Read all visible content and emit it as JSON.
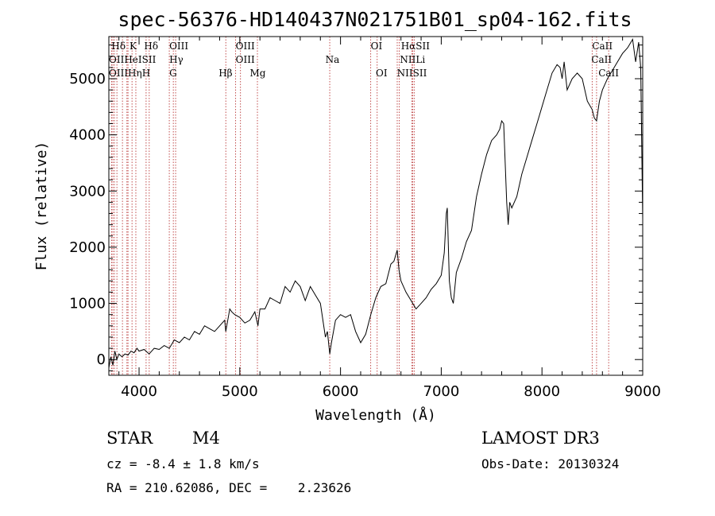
{
  "chart_data": {
    "type": "line",
    "title": "spec-56376-HD140437N021751B01_sp04-162.fits",
    "xlabel": "Wavelength (Å)",
    "ylabel": "Flux (relative)",
    "xlim": [
      3700,
      9000
    ],
    "ylim": [
      -280,
      5750
    ],
    "x_ticks": [
      4000,
      5000,
      6000,
      7000,
      8000,
      9000
    ],
    "y_ticks": [
      0,
      1000,
      2000,
      3000,
      4000,
      5000
    ],
    "x_tick_labels": [
      "4000",
      "5000",
      "6000",
      "7000",
      "8000",
      "9000"
    ],
    "y_tick_labels": [
      "0",
      "1000",
      "2000",
      "3000",
      "4000",
      "5000"
    ],
    "series": [
      {
        "name": "spectrum",
        "x": [
          3700,
          3720,
          3740,
          3760,
          3780,
          3800,
          3830,
          3860,
          3890,
          3920,
          3950,
          3980,
          4000,
          4050,
          4100,
          4150,
          4200,
          4250,
          4300,
          4350,
          4400,
          4450,
          4500,
          4550,
          4600,
          4650,
          4700,
          4750,
          4800,
          4850,
          4861,
          4900,
          4920,
          4950,
          5000,
          5050,
          5100,
          5150,
          5180,
          5200,
          5250,
          5300,
          5350,
          5400,
          5450,
          5500,
          5550,
          5600,
          5650,
          5700,
          5750,
          5800,
          5850,
          5870,
          5893,
          5910,
          5950,
          6000,
          6050,
          6100,
          6150,
          6200,
          6250,
          6300,
          6350,
          6400,
          6450,
          6500,
          6530,
          6563,
          6580,
          6600,
          6650,
          6700,
          6750,
          6800,
          6850,
          6900,
          6950,
          7000,
          7030,
          7050,
          7060,
          7080,
          7100,
          7120,
          7150,
          7200,
          7250,
          7300,
          7350,
          7400,
          7450,
          7500,
          7550,
          7580,
          7600,
          7620,
          7650,
          7665,
          7680,
          7700,
          7750,
          7800,
          7850,
          7900,
          7950,
          8000,
          8050,
          8100,
          8150,
          8180,
          8200,
          8220,
          8250,
          8300,
          8350,
          8400,
          8450,
          8498,
          8520,
          8542,
          8570,
          8600,
          8650,
          8700,
          8750,
          8800,
          8850,
          8900,
          8930,
          8960,
          8980,
          9000
        ],
        "y": [
          -150,
          50,
          -100,
          150,
          0,
          100,
          50,
          100,
          80,
          150,
          120,
          200,
          150,
          180,
          100,
          200,
          180,
          250,
          200,
          350,
          300,
          400,
          350,
          500,
          450,
          600,
          550,
          500,
          600,
          700,
          500,
          900,
          850,
          800,
          750,
          650,
          700,
          850,
          600,
          900,
          900,
          1100,
          1050,
          1000,
          1300,
          1200,
          1400,
          1300,
          1050,
          1300,
          1150,
          1000,
          400,
          500,
          100,
          300,
          700,
          800,
          750,
          800,
          500,
          300,
          450,
          800,
          1100,
          1300,
          1350,
          1700,
          1750,
          1950,
          1600,
          1400,
          1200,
          1050,
          900,
          1000,
          1100,
          1250,
          1350,
          1500,
          1900,
          2600,
          2700,
          1400,
          1100,
          1000,
          1550,
          1800,
          2100,
          2300,
          2900,
          3300,
          3650,
          3900,
          4000,
          4100,
          4250,
          4200,
          2800,
          2400,
          2800,
          2700,
          2900,
          3300,
          3600,
          3900,
          4200,
          4500,
          4800,
          5100,
          5250,
          5200,
          5000,
          5300,
          4800,
          5000,
          5100,
          5000,
          4600,
          4450,
          4300,
          4250,
          4600,
          4800,
          5000,
          5150,
          5300,
          5450,
          5550,
          5700,
          5300,
          5650,
          5200,
          2500
        ]
      }
    ],
    "emission_lines": [
      {
        "label": "Hδ",
        "wavelength": 3727
      },
      {
        "label": "OII",
        "wavelength": 3740
      },
      {
        "label": "OIII",
        "wavelength": 3755
      },
      {
        "label": "He",
        "wavelength": 3780
      },
      {
        "label": "Hη",
        "wavelength": 3835
      },
      {
        "label": "K",
        "wavelength": 3880
      },
      {
        "label": "HeI",
        "wavelength": 3890
      },
      {
        "label": "SII",
        "wavelength": 3930
      },
      {
        "label": "H",
        "wavelength": 3968
      },
      {
        "label": "Hδ",
        "wavelength": 4070
      },
      {
        "label": "SII",
        "wavelength": 4101
      },
      {
        "label": "OIII",
        "wavelength": 4300
      },
      {
        "label": "Hγ",
        "wavelength": 4340
      },
      {
        "label": "G",
        "wavelength": 4363
      },
      {
        "label": "Hβ",
        "wavelength": 4861
      },
      {
        "label": "OIII",
        "wavelength": 4959
      },
      {
        "label": "OIII",
        "wavelength": 5007
      },
      {
        "label": "Mg",
        "wavelength": 5175
      },
      {
        "label": "Na",
        "wavelength": 5893
      },
      {
        "label": "OI",
        "wavelength": 6300
      },
      {
        "label": "OI",
        "wavelength": 6364
      },
      {
        "label": "Hα",
        "wavelength": 6563
      },
      {
        "label": "NII",
        "wavelength": 6583
      },
      {
        "label": "SII",
        "wavelength": 6716
      },
      {
        "label": "SII",
        "wavelength": 6731
      },
      {
        "label": "Li",
        "wavelength": 6707
      },
      {
        "label": "CaII",
        "wavelength": 8498
      },
      {
        "label": "CaII",
        "wavelength": 8542
      },
      {
        "label": "CaII",
        "wavelength": 8662
      }
    ],
    "line_label_texts": [
      {
        "text": "Hδ",
        "wavelength": 3727,
        "row": 0
      },
      {
        "text": "K",
        "wavelength": 3905,
        "row": 0
      },
      {
        "text": "Hδ",
        "wavelength": 4050,
        "row": 0
      },
      {
        "text": "OIII",
        "wavelength": 4300,
        "row": 0
      },
      {
        "text": "OIII",
        "wavelength": 4959,
        "row": 0
      },
      {
        "text": "OI",
        "wavelength": 6300,
        "row": 0
      },
      {
        "text": "HαSII",
        "wavelength": 6600,
        "row": 0
      },
      {
        "text": "CaII",
        "wavelength": 8498,
        "row": 0
      },
      {
        "text": "OIIHeISII",
        "wavelength": 3700,
        "row": 1
      },
      {
        "text": "Hγ",
        "wavelength": 4300,
        "row": 1
      },
      {
        "text": "OIII",
        "wavelength": 4959,
        "row": 1
      },
      {
        "text": "Na",
        "wavelength": 5850,
        "row": 1
      },
      {
        "text": "NIILi",
        "wavelength": 6590,
        "row": 1
      },
      {
        "text": "CaII",
        "wavelength": 8490,
        "row": 1
      },
      {
        "text": "OIIIHηH",
        "wavelength": 3700,
        "row": 2
      },
      {
        "text": "G",
        "wavelength": 4300,
        "row": 2
      },
      {
        "text": "Hβ",
        "wavelength": 4790,
        "row": 2
      },
      {
        "text": "Mg",
        "wavelength": 5100,
        "row": 2
      },
      {
        "text": "OI",
        "wavelength": 6350,
        "row": 2
      },
      {
        "text": "NIISII",
        "wavelength": 6560,
        "row": 2
      },
      {
        "text": "CaII",
        "wavelength": 8560,
        "row": 2
      }
    ]
  },
  "info": {
    "class_label": "STAR",
    "subclass": "M4",
    "survey": "LAMOST DR3",
    "cz_line": "cz = -8.4 ± 1.8 km/s",
    "obs_date": "Obs-Date: 20130324",
    "radec_line": "RA = 210.62086, DEC =    2.23626"
  }
}
